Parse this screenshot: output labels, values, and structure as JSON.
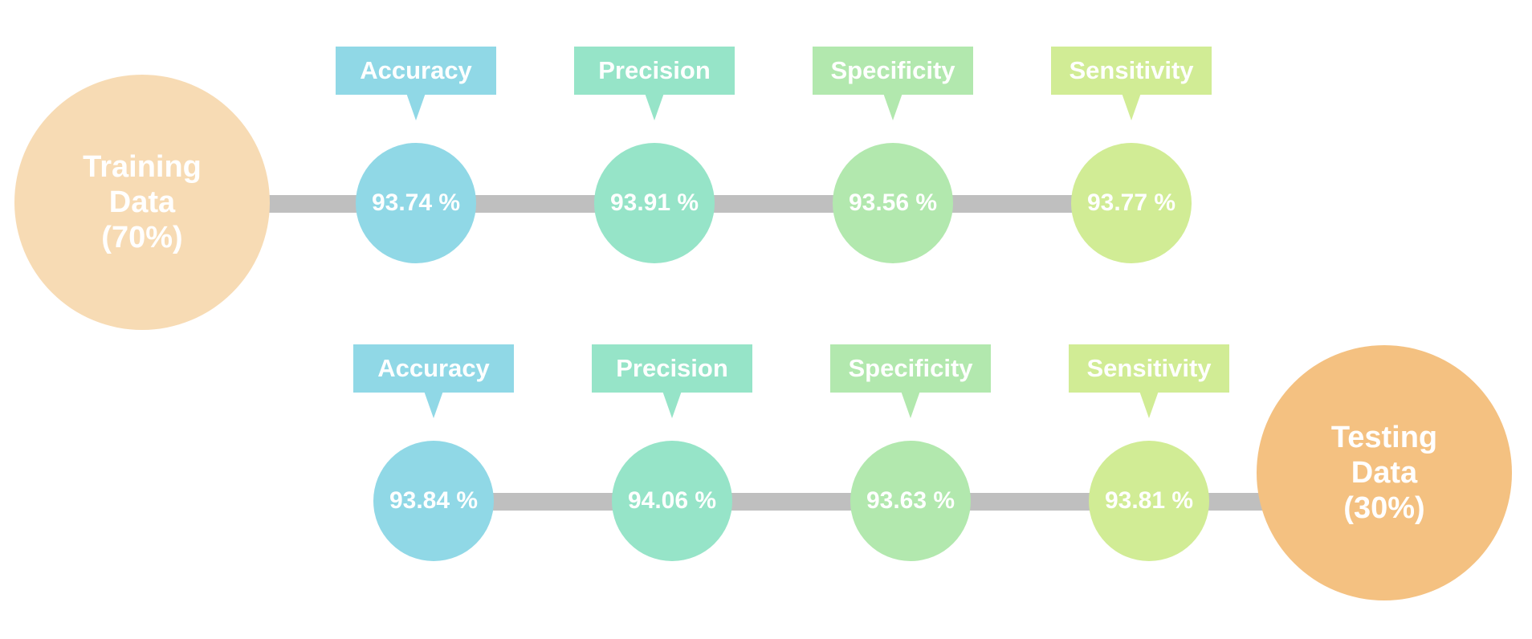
{
  "colors": {
    "connector": "#bfbfbf",
    "training": "#f7dbb4",
    "testing": "#f4c181",
    "accuracy": "#90d8e6",
    "precision": "#96e4c8",
    "specificity": "#b2e8ae",
    "sensitivity": "#d1ec95"
  },
  "training": {
    "label": "Training\nData\n(70%)",
    "metrics": [
      {
        "label": "Accuracy",
        "value": "93.74 %"
      },
      {
        "label": "Precision",
        "value": "93.91 %"
      },
      {
        "label": "Specificity",
        "value": "93.56 %"
      },
      {
        "label": "Sensitivity",
        "value": "93.77 %"
      }
    ]
  },
  "testing": {
    "label": "Testing\nData\n(30%)",
    "metrics": [
      {
        "label": "Accuracy",
        "value": "93.84 %"
      },
      {
        "label": "Precision",
        "value": "94.06 %"
      },
      {
        "label": "Specificity",
        "value": "93.63 %"
      },
      {
        "label": "Sensitivity",
        "value": "93.81 %"
      }
    ]
  }
}
